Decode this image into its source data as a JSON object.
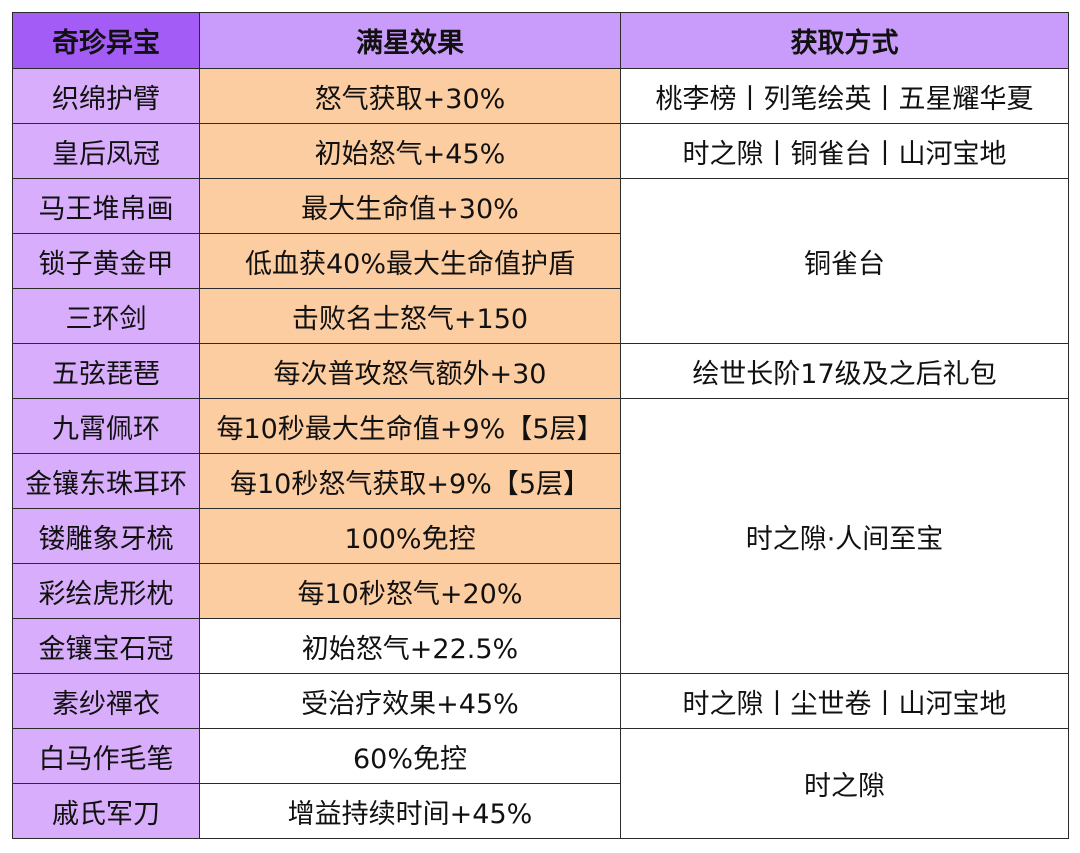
{
  "headers": [
    "奇珍异宝",
    "满星效果",
    "获取方式"
  ],
  "colors": {
    "header_first": "#a35cf5",
    "header": "#c99cfb",
    "name_col": "#d8adfb",
    "highlight": "#fdcda2",
    "border": "#2b2b2b"
  },
  "rows": [
    {
      "name": "织绵护臂",
      "effect": "怒气获取+30%",
      "highlight": true,
      "source": "桃李榜丨列笔绘英丨五星耀华夏"
    },
    {
      "name": "皇后凤冠",
      "effect": "初始怒气+45%",
      "highlight": true,
      "source": "时之隙丨铜雀台丨山河宝地"
    },
    {
      "name": "马王堆帛画",
      "effect": "最大生命值+30%",
      "highlight": true,
      "source": "铜雀台"
    },
    {
      "name": "锁子黄金甲",
      "effect": "低血获40%最大生命值护盾",
      "highlight": true
    },
    {
      "name": "三环剑",
      "effect": "击败名士怒气+150",
      "highlight": true
    },
    {
      "name": "五弦琵琶",
      "effect": "每次普攻怒气额外+30",
      "highlight": true,
      "source": "绘世长阶17级及之后礼包"
    },
    {
      "name": "九霄佩环",
      "effect": "每10秒最大生命值+9%【5层】",
      "highlight": true,
      "source": "时之隙·人间至宝"
    },
    {
      "name": "金镶东珠耳环",
      "effect": "每10秒怒气获取+9%【5层】",
      "highlight": true
    },
    {
      "name": "镂雕象牙梳",
      "effect": "100%免控",
      "highlight": true
    },
    {
      "name": "彩绘虎形枕",
      "effect": "每10秒怒气+20%",
      "highlight": true
    },
    {
      "name": "金镶宝石冠",
      "effect": "初始怒气+22.5%",
      "highlight": false
    },
    {
      "name": "素纱禪衣",
      "effect": "受治疗效果+45%",
      "highlight": false,
      "source": "时之隙丨尘世卷丨山河宝地"
    },
    {
      "name": "白马作毛笔",
      "effect": "60%免控",
      "highlight": false,
      "source": "时之隙"
    },
    {
      "name": "戚氏军刀",
      "effect": "增益持续时间+45%",
      "highlight": false
    }
  ]
}
